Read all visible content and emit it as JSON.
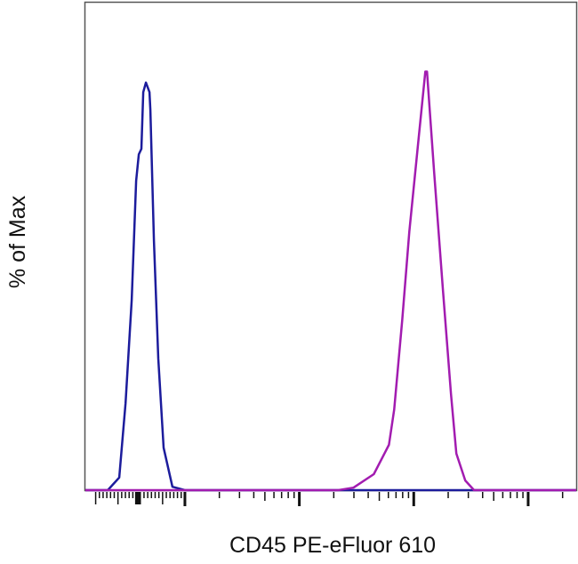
{
  "chart_data": {
    "type": "line",
    "title": "",
    "xlabel": "CD45 PE-eFluor 610",
    "ylabel": "% of Max",
    "x_scale": "biexponential (log decades, unlabeled ticks)",
    "xlim": [
      -0.87,
      3.42
    ],
    "ylim": [
      0,
      116
    ],
    "major_ticks": [
      0,
      1,
      2,
      3
    ],
    "grid": false,
    "legend": "none",
    "series": [
      {
        "color": "#1c1c9c",
        "points": [
          [
            -0.87,
            0
          ],
          [
            -0.674,
            0
          ],
          [
            -0.574,
            3.0
          ],
          [
            -0.519,
            20.7
          ],
          [
            -0.465,
            45.2
          ],
          [
            -0.426,
            73.6
          ],
          [
            -0.403,
            79.9
          ],
          [
            -0.38,
            81.2
          ],
          [
            -0.364,
            94.7
          ],
          [
            -0.341,
            97.0
          ],
          [
            -0.31,
            94.7
          ],
          [
            -0.302,
            90.5
          ],
          [
            -0.271,
            59.4
          ],
          [
            -0.233,
            31.3
          ],
          [
            -0.186,
            10.1
          ],
          [
            -0.109,
            0.8
          ],
          [
            0,
            0
          ],
          [
            3.42,
            0
          ]
        ]
      },
      {
        "color": "#a21cb0",
        "points": [
          [
            -0.87,
            0
          ],
          [
            1.341,
            0
          ],
          [
            1.473,
            0.6
          ],
          [
            1.651,
            3.8
          ],
          [
            1.783,
            10.8
          ],
          [
            1.829,
            19.2
          ],
          [
            1.899,
            40.4
          ],
          [
            1.961,
            61.5
          ],
          [
            2.039,
            82.7
          ],
          [
            2.101,
            99.6
          ],
          [
            2.116,
            99.6
          ],
          [
            2.178,
            75.7
          ],
          [
            2.256,
            47.4
          ],
          [
            2.326,
            22.8
          ],
          [
            2.372,
            8.7
          ],
          [
            2.45,
            2.3
          ],
          [
            2.527,
            0
          ],
          [
            3.42,
            0
          ]
        ]
      }
    ]
  }
}
